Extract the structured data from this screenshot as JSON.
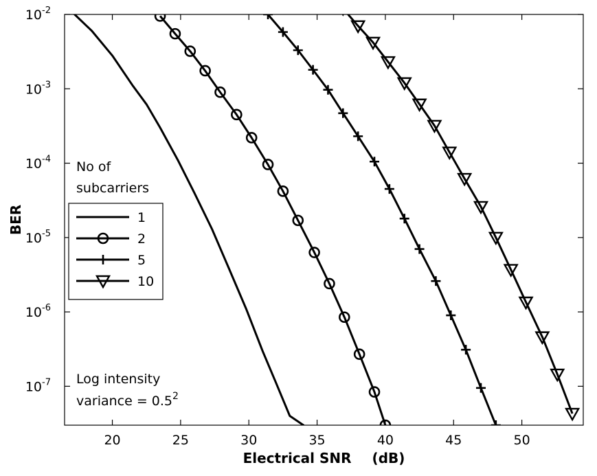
{
  "chart_data": {
    "type": "line",
    "title": "",
    "xlabel": "Electrical SNR",
    "xlabel_unit": "(dB)",
    "ylabel": "BER",
    "xlim": [
      16.5,
      54.5
    ],
    "ylim": [
      3e-08,
      0.01
    ],
    "yscale": "log",
    "x_ticks": [
      20,
      25,
      30,
      35,
      40,
      45,
      50
    ],
    "y_ticks": [
      {
        "value": 1e-07,
        "base": "10",
        "exp": "-7"
      },
      {
        "value": 1e-06,
        "base": "10",
        "exp": "-6"
      },
      {
        "value": 1e-05,
        "base": "10",
        "exp": "-5"
      },
      {
        "value": 0.0001,
        "base": "10",
        "exp": "-4"
      },
      {
        "value": 0.001,
        "base": "10",
        "exp": "-3"
      },
      {
        "value": 0.01,
        "base": "10",
        "exp": "-2"
      }
    ],
    "grid": false,
    "legend": {
      "title_line1": "No of",
      "title_line2": "subcarriers",
      "placement": "center-left"
    },
    "annotation": {
      "line1": "Log intensity",
      "line2_prefix": "variance = 0.5",
      "line2_exp": "2"
    },
    "series": [
      {
        "name": "1",
        "marker": "none",
        "x": [
          17.0,
          18.5,
          20.0,
          21.5,
          22.5,
          23.5,
          24.8,
          26.0,
          27.3,
          28.5,
          29.8,
          31.0,
          32.0,
          33.0,
          34.0,
          34.5
        ],
        "y": [
          0.011,
          0.006,
          0.0028,
          0.0011,
          0.00062,
          0.0003,
          0.00011,
          4e-05,
          1.3e-05,
          4e-06,
          1.1e-06,
          3e-07,
          1.1e-07,
          4e-08,
          3e-08,
          2.5e-08
        ]
      },
      {
        "name": "2",
        "marker": "circle",
        "x": [
          23.5,
          24.6,
          25.7,
          26.8,
          27.9,
          29.1,
          30.2,
          31.4,
          32.5,
          33.6,
          34.8,
          35.9,
          37.0,
          38.1,
          39.2,
          40.0
        ],
        "y": [
          0.0095,
          0.0055,
          0.0032,
          0.00175,
          0.0009,
          0.00045,
          0.00022,
          9.6e-05,
          4.2e-05,
          1.7e-05,
          6.3e-06,
          2.4e-06,
          8.5e-07,
          2.7e-07,
          8.4e-08,
          3e-08
        ]
      },
      {
        "name": "5",
        "marker": "plus",
        "x": [
          31.4,
          32.5,
          33.6,
          34.7,
          35.8,
          36.9,
          38.0,
          39.2,
          40.3,
          41.4,
          42.5,
          43.7,
          44.8,
          45.9,
          47.0,
          48.1
        ],
        "y": [
          0.01,
          0.0058,
          0.0033,
          0.0018,
          0.00097,
          0.00047,
          0.00023,
          0.000105,
          4.5e-05,
          1.8e-05,
          7e-06,
          2.6e-06,
          9e-07,
          3.1e-07,
          9.5e-08,
          3e-08
        ]
      },
      {
        "name": "10",
        "marker": "triangle-down",
        "x": [
          36.9,
          38.0,
          39.1,
          40.2,
          41.4,
          42.5,
          43.6,
          44.7,
          45.8,
          47.0,
          48.1,
          49.2,
          50.3,
          51.5,
          52.6,
          53.7
        ],
        "y": [
          0.012,
          0.007,
          0.0042,
          0.0023,
          0.0012,
          0.00062,
          0.00032,
          0.00014,
          6.2e-05,
          2.6e-05,
          1e-05,
          3.7e-06,
          1.35e-06,
          4.6e-07,
          1.45e-07,
          4.3e-08
        ]
      }
    ]
  }
}
